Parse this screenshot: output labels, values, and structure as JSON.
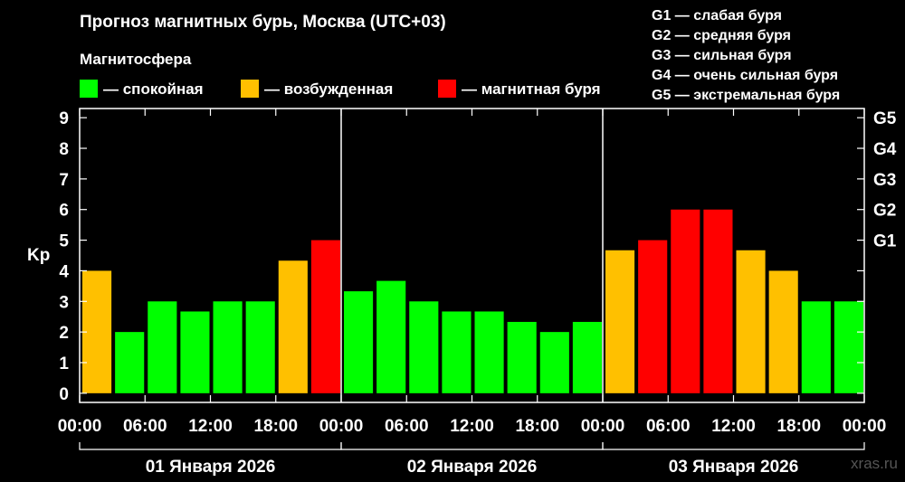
{
  "title": "Прогноз магнитных бурь, Москва (UTC+03)",
  "legend": {
    "title": "Магнитосфера",
    "items": [
      {
        "label": "— спокойная",
        "color": "#00ff00"
      },
      {
        "label": "— возбужденная",
        "color": "#ffc000"
      },
      {
        "label": "— магнитная буря",
        "color": "#ff0000"
      }
    ]
  },
  "storm_scale": [
    "G1 — слабая буря",
    "G2 — средняя буря",
    "G3 — сильная буря",
    "G4 — очень сильная буря",
    "G5 — экстремальная буря"
  ],
  "watermark": "xras.ru",
  "chart_data": {
    "type": "bar",
    "ylabel": "Kp",
    "ylim": [
      -0.3,
      9.3
    ],
    "y_ticks": [
      "0",
      "1",
      "2",
      "3",
      "4",
      "5",
      "6",
      "7",
      "8",
      "9"
    ],
    "right_ticks": [
      {
        "value": 5,
        "label": "G1"
      },
      {
        "value": 6,
        "label": "G2"
      },
      {
        "value": 7,
        "label": "G3"
      },
      {
        "value": 8,
        "label": "G4"
      },
      {
        "value": 9,
        "label": "G5"
      }
    ],
    "x_tick_labels": [
      "00:00",
      "06:00",
      "12:00",
      "18:00",
      "00:00",
      "06:00",
      "12:00",
      "18:00",
      "00:00",
      "06:00",
      "12:00",
      "18:00",
      "00:00"
    ],
    "days": [
      "01 Января 2026",
      "02 Января 2026",
      "03 Января 2026"
    ],
    "values": [
      4.0,
      2.0,
      3.0,
      2.67,
      3.0,
      3.0,
      4.33,
      5.0,
      3.33,
      3.67,
      3.0,
      2.67,
      2.67,
      2.33,
      2.0,
      2.33,
      4.67,
      5.0,
      6.0,
      6.0,
      4.67,
      4.0,
      3.0,
      3.0
    ],
    "colors": {
      "quiet": "#00ff00",
      "active": "#ffc000",
      "storm": "#ff0000"
    }
  }
}
